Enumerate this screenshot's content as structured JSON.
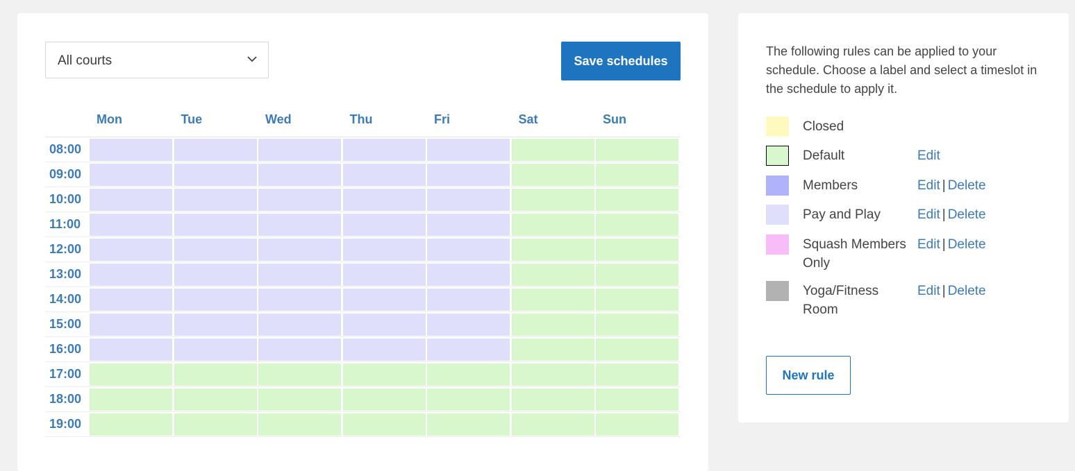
{
  "schedule": {
    "court_select": {
      "value": "All courts",
      "icon": "chevron-down-icon"
    },
    "save_label": "Save schedules",
    "days": [
      "Mon",
      "Tue",
      "Wed",
      "Thu",
      "Fri",
      "Sat",
      "Sun"
    ],
    "times": [
      "08:00",
      "09:00",
      "10:00",
      "11:00",
      "12:00",
      "13:00",
      "14:00",
      "15:00",
      "16:00",
      "17:00",
      "18:00",
      "19:00"
    ],
    "grid": [
      [
        "Pay and Play",
        "Pay and Play",
        "Pay and Play",
        "Pay and Play",
        "Pay and Play",
        "Default",
        "Default"
      ],
      [
        "Pay and Play",
        "Pay and Play",
        "Pay and Play",
        "Pay and Play",
        "Pay and Play",
        "Default",
        "Default"
      ],
      [
        "Pay and Play",
        "Pay and Play",
        "Pay and Play",
        "Pay and Play",
        "Pay and Play",
        "Default",
        "Default"
      ],
      [
        "Pay and Play",
        "Pay and Play",
        "Pay and Play",
        "Pay and Play",
        "Pay and Play",
        "Default",
        "Default"
      ],
      [
        "Pay and Play",
        "Pay and Play",
        "Pay and Play",
        "Pay and Play",
        "Pay and Play",
        "Default",
        "Default"
      ],
      [
        "Pay and Play",
        "Pay and Play",
        "Pay and Play",
        "Pay and Play",
        "Pay and Play",
        "Default",
        "Default"
      ],
      [
        "Pay and Play",
        "Pay and Play",
        "Pay and Play",
        "Pay and Play",
        "Pay and Play",
        "Default",
        "Default"
      ],
      [
        "Pay and Play",
        "Pay and Play",
        "Pay and Play",
        "Pay and Play",
        "Pay and Play",
        "Default",
        "Default"
      ],
      [
        "Pay and Play",
        "Pay and Play",
        "Pay and Play",
        "Pay and Play",
        "Pay and Play",
        "Default",
        "Default"
      ],
      [
        "Default",
        "Default",
        "Default",
        "Default",
        "Default",
        "Default",
        "Default"
      ],
      [
        "Default",
        "Default",
        "Default",
        "Default",
        "Default",
        "Default",
        "Default"
      ],
      [
        "Default",
        "Default",
        "Default",
        "Default",
        "Default",
        "Default",
        "Default"
      ]
    ]
  },
  "rules_panel": {
    "intro": "The following rules can be applied to your schedule. Choose a label and select a timeslot in the schedule to apply it.",
    "rules": [
      {
        "label": "Closed",
        "color": "#fdf9bf",
        "edit": "",
        "delete": ""
      },
      {
        "label": "Default",
        "color": "#d9f7cd",
        "edit": "Edit",
        "delete": ""
      },
      {
        "label": "Members",
        "color": "#b0b3fa",
        "edit": "Edit",
        "delete": "Delete"
      },
      {
        "label": "Pay and Play",
        "color": "#dfdffb",
        "edit": "Edit",
        "delete": "Delete"
      },
      {
        "label": "Squash Members Only",
        "color": "#f8bdf8",
        "edit": "Edit",
        "delete": "Delete"
      },
      {
        "label": "Yoga/Fitness Room",
        "color": "#b2b2b2",
        "edit": "Edit",
        "delete": "Delete"
      }
    ],
    "separator": "|",
    "new_rule_label": "New rule"
  }
}
